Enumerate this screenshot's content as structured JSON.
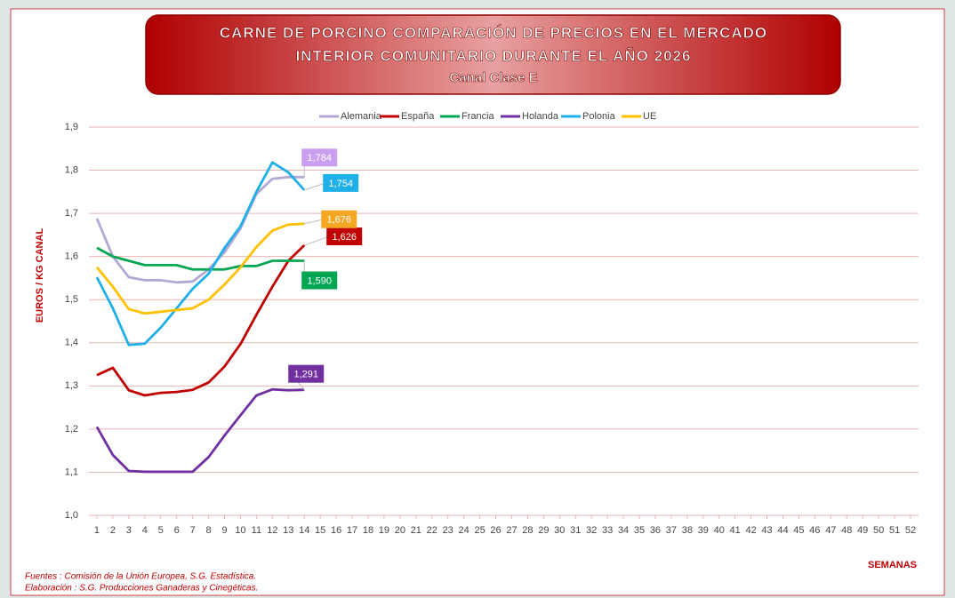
{
  "chart_data": {
    "type": "line",
    "title": [
      "CARNE DE PORCINO COMPARACIÓN DE PRECIOS EN EL MERCADO",
      "INTERIOR COMUNITARIO DURANTE  EL AÑO 2026"
    ],
    "subtitle": "Canal Clase E",
    "y_label": "EUROS / KG CANAL",
    "x_label": "SEMANAS",
    "sources": [
      "Fuentes : Comisión de la Unión Europea, S.G. Estadística.",
      "Elaboración : S.G. Producciones Ganaderas y Cinegéticas."
    ],
    "x": [
      1,
      2,
      3,
      4,
      5,
      6,
      7,
      8,
      9,
      10,
      11,
      12,
      13,
      14
    ],
    "xlim": [
      0.5,
      52.5
    ],
    "xticks": [
      1,
      2,
      3,
      4,
      5,
      6,
      7,
      8,
      9,
      10,
      11,
      12,
      13,
      14,
      15,
      16,
      17,
      18,
      19,
      20,
      21,
      22,
      23,
      24,
      25,
      26,
      27,
      28,
      29,
      30,
      31,
      32,
      33,
      34,
      35,
      36,
      37,
      38,
      39,
      40,
      41,
      42,
      43,
      44,
      45,
      46,
      47,
      48,
      49,
      50,
      51,
      52
    ],
    "ylim": [
      1.0,
      1.9
    ],
    "yticks": [
      {
        "value": 1.0,
        "label": "1,0"
      },
      {
        "value": 1.1,
        "label": "1,1"
      },
      {
        "value": 1.2,
        "label": "1,2"
      },
      {
        "value": 1.3,
        "label": "1,3"
      },
      {
        "value": 1.4,
        "label": "1,4"
      },
      {
        "value": 1.5,
        "label": "1,5"
      },
      {
        "value": 1.6,
        "label": "1,6"
      },
      {
        "value": 1.7,
        "label": "1,7"
      },
      {
        "value": 1.8,
        "label": "1,8"
      },
      {
        "value": 1.9,
        "label": "1,9"
      }
    ],
    "grid": true,
    "legend": "top",
    "series": [
      {
        "name": "Alemania",
        "color": "#b4a7d6",
        "label_color": "#c9a0f0",
        "values": [
          1.688,
          1.6,
          1.552,
          1.545,
          1.545,
          1.54,
          1.542,
          1.57,
          1.61,
          1.665,
          1.745,
          1.78,
          1.784,
          1.784
        ],
        "value_labels": [
          null,
          null,
          null,
          null,
          null,
          null,
          null,
          null,
          null,
          null,
          null,
          null,
          null,
          "1,784"
        ]
      },
      {
        "name": "España",
        "color": "#c00000",
        "label_color": "#c00000",
        "values": [
          1.325,
          1.342,
          1.29,
          1.278,
          1.284,
          1.286,
          1.291,
          1.308,
          1.345,
          1.397,
          1.465,
          1.53,
          1.59,
          1.626
        ],
        "value_labels": [
          null,
          null,
          null,
          null,
          null,
          null,
          null,
          null,
          null,
          null,
          null,
          null,
          null,
          "1,626"
        ]
      },
      {
        "name": "Francia",
        "color": "#00a651",
        "label_color": "#00a651",
        "values": [
          1.62,
          1.6,
          1.59,
          1.58,
          1.58,
          1.58,
          1.57,
          1.57,
          1.57,
          1.578,
          1.578,
          1.59,
          1.59,
          1.59
        ],
        "value_labels": [
          null,
          null,
          null,
          null,
          null,
          null,
          null,
          null,
          null,
          null,
          null,
          null,
          null,
          "1,590"
        ]
      },
      {
        "name": "Holanda",
        "color": "#7030a0",
        "label_color": "#7030a0",
        "values": [
          1.205,
          1.14,
          1.103,
          1.101,
          1.101,
          1.101,
          1.101,
          1.135,
          1.185,
          1.232,
          1.278,
          1.292,
          1.29,
          1.291
        ],
        "value_labels": [
          null,
          null,
          null,
          null,
          null,
          null,
          null,
          null,
          null,
          null,
          null,
          null,
          null,
          "1,291"
        ]
      },
      {
        "name": "Polonia",
        "color": "#1fb0e8",
        "label_color": "#1fb0e8",
        "values": [
          1.552,
          1.48,
          1.395,
          1.398,
          1.435,
          1.48,
          1.525,
          1.56,
          1.62,
          1.67,
          1.75,
          1.818,
          1.795,
          1.754
        ],
        "value_labels": [
          null,
          null,
          null,
          null,
          null,
          null,
          null,
          null,
          null,
          null,
          null,
          null,
          null,
          "1,754"
        ]
      },
      {
        "name": "UE",
        "color": "#ffc000",
        "label_color": "#f5a623",
        "values": [
          1.575,
          1.53,
          1.478,
          1.468,
          1.472,
          1.476,
          1.48,
          1.5,
          1.535,
          1.575,
          1.622,
          1.66,
          1.674,
          1.676
        ],
        "value_labels": [
          null,
          null,
          null,
          null,
          null,
          null,
          null,
          null,
          null,
          null,
          null,
          null,
          null,
          "1,676"
        ]
      }
    ]
  }
}
